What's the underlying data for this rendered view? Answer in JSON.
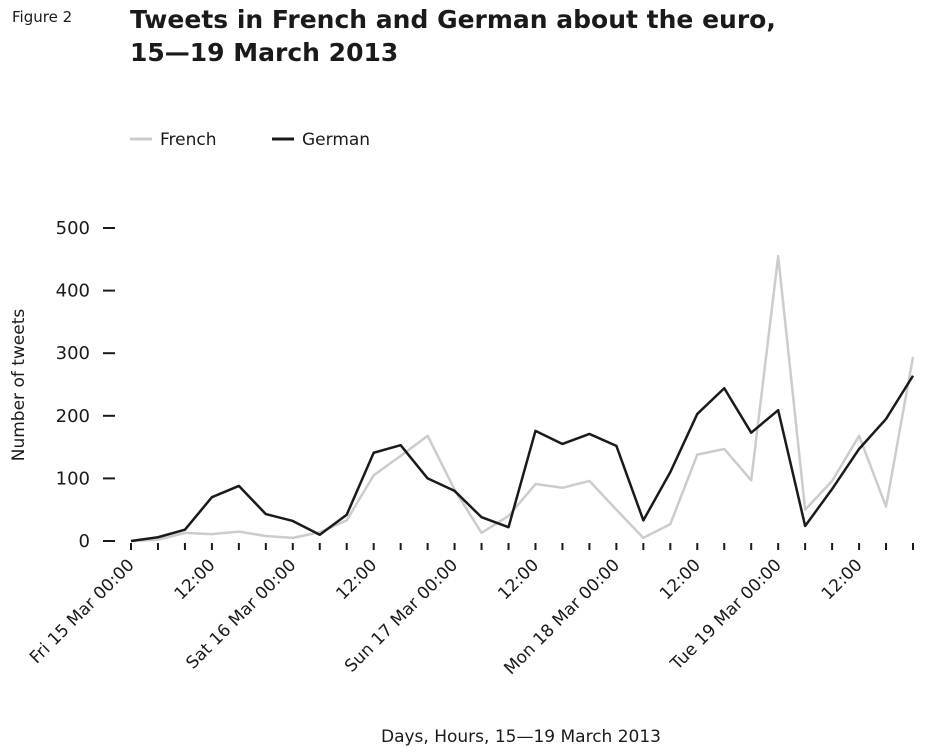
{
  "figure_label": "Figure 2",
  "chart_data": {
    "type": "line",
    "title": [
      "Tweets in French and German about the euro,",
      "15—19 March 2013"
    ],
    "x_label": "Days, Hours, 15—19 March 2013",
    "y_label": "Number of tweets",
    "categories": [
      "Fri 15 Mar 00:00",
      null,
      null,
      "12:00",
      null,
      null,
      "Sat 16 Mar 00:00",
      null,
      null,
      "12:00",
      null,
      null,
      "Sun 17 Mar 00:00",
      null,
      null,
      "12:00",
      null,
      null,
      "Mon 18 Mar 00:00",
      null,
      null,
      "12:00",
      null,
      null,
      "Tue 19 Mar 00:00",
      null,
      null,
      "12:00",
      null,
      null
    ],
    "series": [
      {
        "name": "French",
        "color": "#cccccc",
        "values": [
          0,
          2,
          13,
          11,
          15,
          8,
          5,
          14,
          33,
          105,
          136,
          168,
          82,
          13,
          40,
          91,
          85,
          96,
          50,
          5,
          27,
          138,
          147,
          97,
          455,
          50,
          96,
          168,
          55,
          294
        ]
      },
      {
        "name": "German",
        "color": "#1a1a1a",
        "values": [
          0,
          6,
          18,
          70,
          88,
          43,
          32,
          10,
          42,
          141,
          153,
          100,
          80,
          38,
          22,
          176,
          155,
          171,
          152,
          33,
          110,
          203,
          244,
          173,
          209,
          24,
          83,
          147,
          195,
          264
        ]
      }
    ],
    "ylim": [
      0,
      500
    ],
    "yticks": [
      0,
      100,
      200,
      300,
      400,
      500
    ],
    "legend": "top-left"
  }
}
